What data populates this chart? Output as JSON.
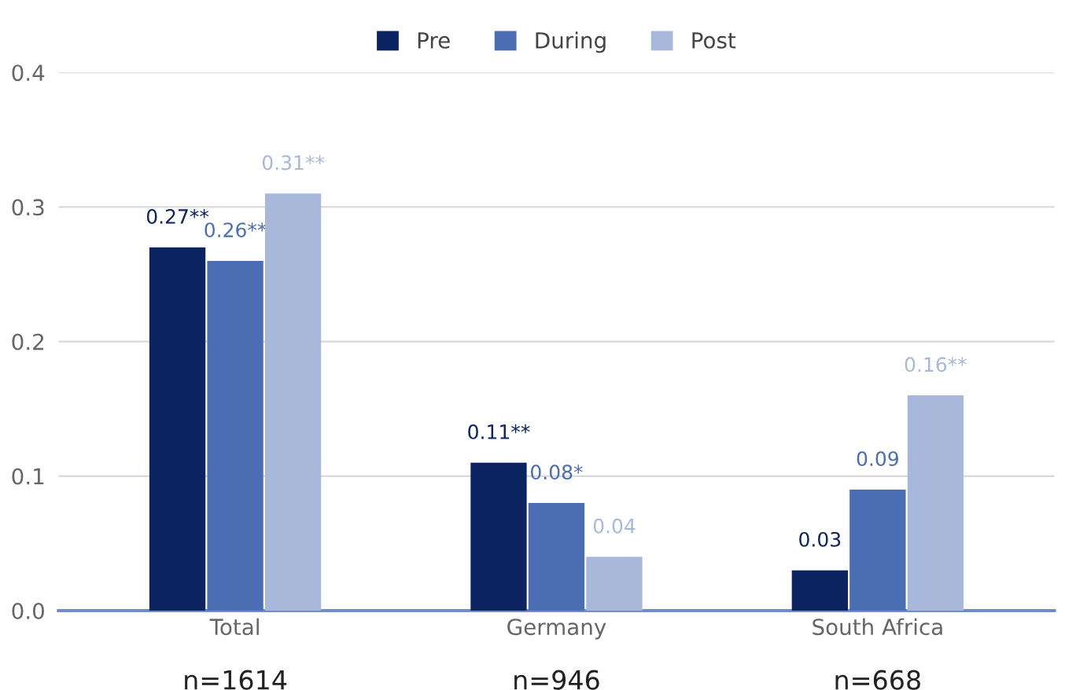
{
  "chart_data": {
    "type": "bar",
    "categories": [
      "Total",
      "Germany",
      "South Africa"
    ],
    "series": [
      {
        "name": "Pre",
        "color": "#0c2461",
        "values": [
          0.27,
          0.11,
          0.03
        ],
        "value_labels": [
          "0.27**",
          "0.11**",
          "0.03"
        ]
      },
      {
        "name": "During",
        "color": "#4a6db4",
        "values": [
          0.26,
          0.08,
          0.09
        ],
        "value_labels": [
          "0.26**",
          "0.08*",
          "0.09"
        ]
      },
      {
        "name": "Post",
        "color": "#a8b8da",
        "values": [
          0.31,
          0.04,
          0.16
        ],
        "value_labels": [
          "0.31**",
          "0.04",
          "0.16**"
        ]
      }
    ],
    "ylim": [
      0,
      0.4
    ],
    "yticks": [
      {
        "value": 0,
        "label": "0.0"
      },
      {
        "value": 0.1,
        "label": "0.1"
      },
      {
        "value": 0.2,
        "label": "0.2"
      },
      {
        "value": 0.3,
        "label": "0.3"
      },
      {
        "value": 0.4,
        "label": "0.4"
      }
    ],
    "grid": "y",
    "legend": "top",
    "annotations": [
      "n=1614",
      "n=946",
      "n=668"
    ]
  }
}
